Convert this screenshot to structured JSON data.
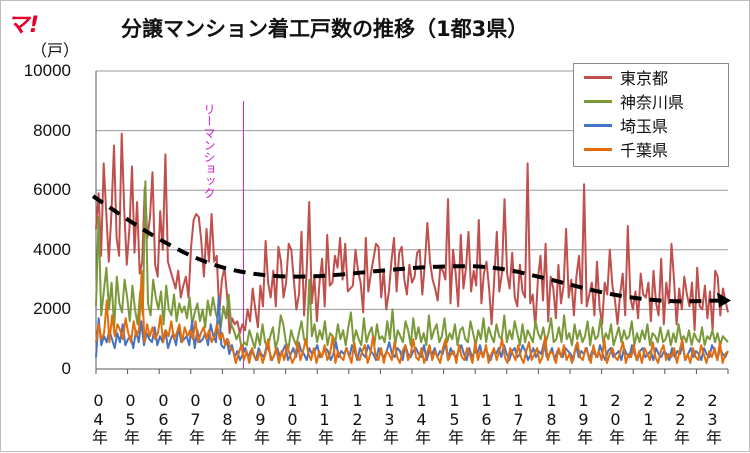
{
  "logo": "マ!",
  "chart_data": {
    "type": "line",
    "title": "分譲マンション着工戸数の推移（1都3県）",
    "ylabel": "（戸）",
    "ylim": [
      0,
      10000
    ],
    "yticks": [
      "0",
      "2000",
      "4000",
      "6000",
      "8000",
      "10000"
    ],
    "x_start": "2004-01",
    "x_end": "2023-12",
    "xtick_labels": [
      "04年",
      "05年",
      "06年",
      "07年",
      "08年",
      "09年",
      "10年",
      "11年",
      "12年",
      "13年",
      "14年",
      "15年",
      "16年",
      "17年",
      "18年",
      "19年",
      "20年",
      "21年",
      "22年",
      "23年"
    ],
    "annotation": "リーマンショック",
    "annotation_x": "2008-09",
    "legend_position": "top-right",
    "series": [
      {
        "name": "東京都",
        "color": "#c0504d",
        "values": [
          4700,
          5900,
          3800,
          6900,
          5200,
          3600,
          5200,
          7500,
          4400,
          3800,
          7900,
          5300,
          3500,
          4700,
          6800,
          3900,
          5600,
          3200,
          3600,
          6100,
          4400,
          5100,
          6600,
          3500,
          3100,
          5300,
          4000,
          7200,
          3600,
          3300,
          3000,
          2700,
          3300,
          2400,
          2800,
          3100,
          2400,
          4100,
          5000,
          5200,
          5100,
          4300,
          3100,
          4700,
          3600,
          5200,
          3600,
          3800,
          1900,
          3000,
          3400,
          2500,
          1200,
          1700,
          1500,
          1600,
          1200,
          1500,
          1300,
          2000,
          1600,
          2700,
          2000,
          1400,
          2800,
          2100,
          4300,
          2900,
          2400,
          3300,
          2100,
          4100,
          3600,
          2400,
          2900,
          4200,
          4000,
          3000,
          2000,
          2500,
          4600,
          1800,
          3300,
          5600,
          2200,
          3100,
          1600,
          2900,
          3700,
          2100,
          4500,
          2800,
          2900,
          3800,
          3400,
          4400,
          3000,
          4200,
          2600,
          2700,
          2800,
          4000,
          3300,
          2900,
          1900,
          4400,
          2600,
          3200,
          3700,
          4200,
          4100,
          2400,
          3300,
          2000,
          2600,
          3600,
          4400,
          2600,
          3900,
          4100,
          3000,
          2500,
          3500,
          2900,
          3100,
          3900,
          4000,
          2500,
          3500,
          4900,
          3600,
          3000,
          2700,
          2300,
          3400,
          3300,
          3000,
          5700,
          2200,
          4000,
          3200,
          2100,
          4500,
          2700,
          3400,
          4600,
          2600,
          3300,
          2800,
          5000,
          2200,
          3200,
          3600,
          2700,
          1500,
          3000,
          4600,
          2600,
          3200,
          5700,
          3200,
          2700,
          3900,
          2400,
          2100,
          3500,
          2600,
          2400,
          6900,
          2200,
          2500,
          1400,
          3000,
          3800,
          2300,
          4200,
          1600,
          3100,
          2700,
          1700,
          3500,
          2200,
          2800,
          4700,
          2400,
          3000,
          1800,
          3100,
          3800,
          2200,
          6200,
          2100,
          2500,
          2900,
          1800,
          3600,
          2100,
          1500,
          2900,
          2500,
          4000,
          2800,
          2300,
          1500,
          2500,
          3200,
          1800,
          4800,
          2400,
          2000,
          2600,
          1700,
          3200,
          2500,
          2400,
          2900,
          1600,
          3300,
          2200,
          1800,
          3700,
          1500,
          2900,
          2200,
          4200,
          3000,
          1500,
          2700,
          2000,
          3100,
          2500,
          2100,
          2900,
          1300,
          3400,
          2100,
          2000,
          2800,
          1700,
          2600,
          1300,
          3300,
          3100,
          1800,
          2700,
          2300,
          1900
        ]
      },
      {
        "name": "神奈川県",
        "color": "#7a9a3a",
        "values": [
          2100,
          5100,
          1800,
          2600,
          3400,
          2000,
          2900,
          1400,
          3100,
          2200,
          1900,
          3000,
          2400,
          1600,
          2800,
          2000,
          1500,
          2600,
          1800,
          6300,
          2200,
          1800,
          3000,
          2400,
          2000,
          2600,
          1500,
          2800,
          2000,
          1800,
          2500,
          1600,
          2200,
          1900,
          2100,
          1700,
          2400,
          1500,
          1900,
          2200,
          1600,
          2000,
          1400,
          2300,
          1800,
          2400,
          1900,
          1600,
          1400,
          2100,
          1700,
          2500,
          1500,
          1300,
          1000,
          1200,
          700,
          900,
          800,
          1300,
          1000,
          700,
          1200,
          800,
          1500,
          900,
          700,
          1100,
          1400,
          700,
          1000,
          1800,
          1500,
          900,
          700,
          1300,
          1000,
          800,
          1200,
          1600,
          1000,
          800,
          3000,
          1100,
          1500,
          900,
          1300,
          1000,
          1600,
          800,
          1200,
          1100,
          900,
          1500,
          1000,
          1300,
          800,
          1400,
          1900,
          900,
          1300,
          1000,
          800,
          1700,
          900,
          1200,
          1400,
          800,
          1500,
          1000,
          1100,
          900,
          1600,
          1000,
          2000,
          800,
          1300,
          1100,
          900,
          1600,
          1300,
          800,
          1700,
          1000,
          1400,
          900,
          1200,
          800,
          1800,
          1000,
          1300,
          1500,
          900,
          1100,
          1700,
          900,
          1200,
          1000,
          1500,
          800,
          1300,
          1400,
          1000,
          900,
          1600,
          1200,
          800,
          1300,
          1000,
          1700,
          900,
          1400,
          1100,
          900,
          1500,
          1100,
          1000,
          1800,
          900,
          1300,
          1000,
          1600,
          1200,
          800,
          1500,
          900,
          1300,
          1100,
          900,
          1600,
          1200,
          1000,
          1400,
          900,
          1200,
          1700,
          900,
          1000,
          1400,
          900,
          1800,
          1000,
          1200,
          800,
          1500,
          1000,
          1300,
          900,
          1100,
          1600,
          800,
          1400,
          1000,
          1100,
          1700,
          900,
          1200,
          1000,
          1500,
          800,
          1100,
          1400,
          900,
          1300,
          1000,
          1100,
          1600,
          800,
          1200,
          900,
          1300,
          1000,
          1500,
          800,
          1200,
          1100,
          900,
          1400,
          900,
          1000,
          1300,
          800,
          1200,
          900,
          1500,
          1000,
          1100,
          900,
          1300,
          800,
          1200,
          1000,
          900,
          1400,
          800,
          1100,
          1000,
          1300,
          900,
          1200,
          800,
          1100,
          1000,
          900
        ]
      },
      {
        "name": "埼玉県",
        "color": "#4472c4",
        "values": [
          400,
          1700,
          800,
          1100,
          900,
          1300,
          1000,
          700,
          1200,
          900,
          1500,
          800,
          1000,
          1100,
          700,
          1300,
          900,
          1600,
          800,
          1200,
          1000,
          900,
          1400,
          800,
          1100,
          900,
          1300,
          700,
          1000,
          1200,
          800,
          1400,
          900,
          1000,
          1100,
          800,
          1600,
          700,
          1300,
          900,
          1000,
          1200,
          800,
          1500,
          1100,
          900,
          2400,
          800,
          700,
          1000,
          500,
          800,
          400,
          600,
          300,
          500,
          700,
          400,
          600,
          500,
          300,
          700,
          500,
          400,
          800,
          600,
          300,
          500,
          700,
          400,
          600,
          800,
          300,
          500,
          700,
          400,
          900,
          600,
          500,
          300,
          700,
          500,
          600,
          800,
          400,
          500,
          700,
          600,
          300,
          500,
          900,
          400,
          600,
          500,
          700,
          400,
          800,
          600,
          300,
          700,
          500,
          400,
          800,
          600,
          500,
          300,
          700,
          500,
          400,
          600,
          900,
          500,
          400,
          700,
          600,
          300,
          800,
          500,
          400,
          600,
          700,
          500,
          400,
          800,
          300,
          600,
          500,
          700,
          400,
          600,
          500,
          900,
          300,
          700,
          500,
          400,
          600,
          800,
          500,
          300,
          700,
          400,
          600,
          500,
          800,
          400,
          700,
          500,
          300,
          600,
          500,
          700,
          400,
          800,
          500,
          300,
          600,
          700,
          400,
          500,
          800,
          600,
          300,
          500,
          700,
          400,
          600,
          500,
          900,
          400,
          500,
          700,
          300,
          600,
          500,
          400,
          700,
          600,
          500,
          300,
          800,
          400,
          600,
          500,
          700,
          300,
          600,
          500,
          400,
          800,
          500,
          300,
          600,
          700,
          400,
          500,
          600,
          300,
          700,
          500,
          400,
          800,
          500,
          300,
          600,
          700,
          400,
          500,
          600,
          300,
          700,
          500,
          400,
          600,
          500,
          300,
          700,
          400,
          600,
          500,
          800,
          300,
          500,
          700,
          400,
          600,
          500,
          300,
          700,
          500,
          400,
          800,
          600,
          300,
          700,
          500,
          400,
          600
        ]
      },
      {
        "name": "千葉県",
        "color": "#e46c0a",
        "values": [
          900,
          1500,
          1000,
          1200,
          2300,
          900,
          1800,
          1100,
          1500,
          1300,
          1000,
          1700,
          1200,
          900,
          1600,
          1100,
          1300,
          3300,
          900,
          1500,
          1100,
          1400,
          1000,
          1200,
          1800,
          900,
          1300,
          1100,
          1600,
          1000,
          1200,
          1500,
          900,
          1400,
          1100,
          1300,
          1000,
          1600,
          900,
          1200,
          1400,
          1000,
          1300,
          900,
          1100,
          1500,
          1000,
          1200,
          800,
          1000,
          700,
          600,
          200,
          500,
          800,
          300,
          600,
          200,
          700,
          400,
          300,
          600,
          200,
          500,
          1000,
          300,
          400,
          700,
          200,
          600,
          300,
          800,
          500,
          200,
          400,
          900,
          300,
          600,
          1000,
          500,
          300,
          700,
          200,
          600,
          400,
          800,
          300,
          500,
          1100,
          200,
          600,
          400,
          300,
          700,
          500,
          200,
          900,
          400,
          300,
          600,
          800,
          200,
          500,
          1100,
          400,
          300,
          700,
          200,
          600,
          500,
          300,
          900,
          400,
          200,
          600,
          800,
          300,
          500,
          1000,
          400,
          300,
          700,
          200,
          500,
          800,
          300,
          600,
          400,
          200,
          700,
          1000,
          300,
          500,
          600,
          200,
          800,
          400,
          300,
          700,
          500,
          200,
          900,
          300,
          600,
          400,
          800,
          200,
          500,
          700,
          300,
          600,
          1000,
          400,
          200,
          700,
          500,
          300,
          800,
          400,
          200,
          600,
          900,
          300,
          500,
          700,
          200,
          400,
          1100,
          300,
          600,
          500,
          200,
          700,
          400,
          800,
          300,
          500,
          200,
          600,
          900,
          400,
          300,
          700,
          500,
          200,
          800,
          400,
          600,
          300,
          1000,
          200,
          500,
          700,
          400,
          300,
          600,
          900,
          200,
          500,
          400,
          800,
          300,
          600,
          200,
          700,
          500,
          300,
          900,
          400,
          200,
          600,
          800,
          300,
          500,
          400,
          700,
          200,
          600,
          1000,
          300,
          500,
          200,
          700,
          400,
          300,
          800,
          500,
          200,
          600,
          400,
          700,
          300,
          900,
          200,
          500,
          600
        ]
      },
      {
        "name": "",
        "color": "#000000",
        "style": "dashed-trend",
        "values": [
          5800,
          4500,
          3500,
          3100,
          3100,
          3300,
          3450,
          3450,
          3000,
          2500,
          2250,
          2300
        ]
      }
    ]
  }
}
